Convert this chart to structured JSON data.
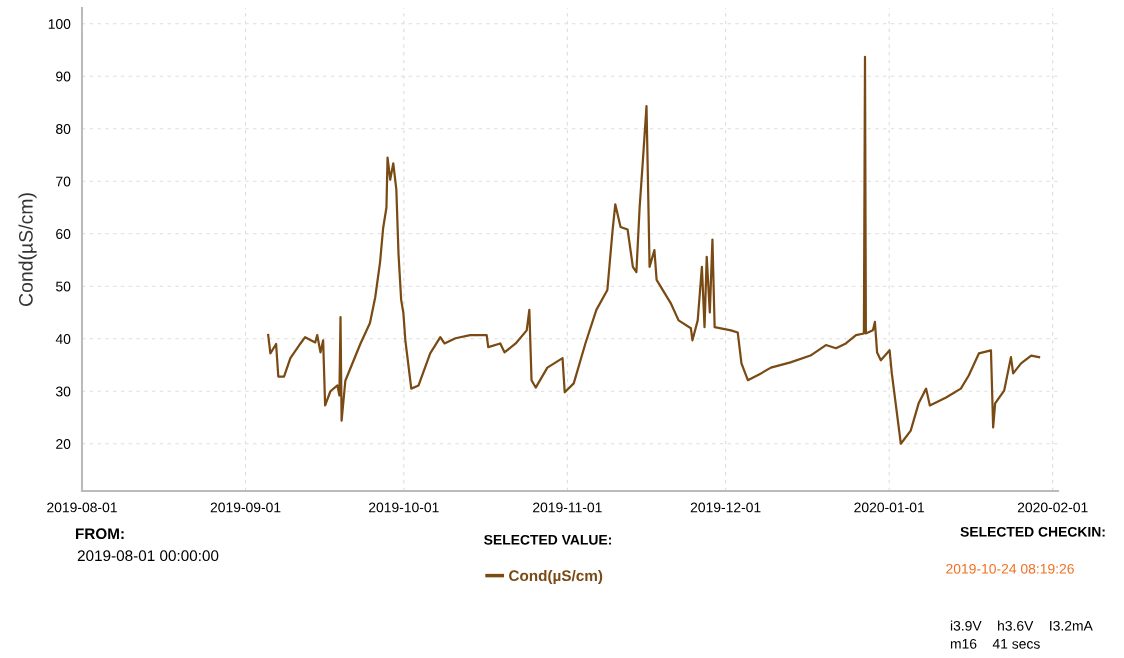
{
  "chart_data": {
    "type": "line",
    "ylabel": "Cond(µS/cm)",
    "xlim": [
      "2019-08-01",
      "2020-02-02"
    ],
    "ylim": [
      11,
      103
    ],
    "xticks": [
      "2019-08-01",
      "2019-09-01",
      "2019-10-01",
      "2019-11-01",
      "2019-12-01",
      "2020-01-01",
      "2020-02-01"
    ],
    "yticks": [
      20,
      30,
      40,
      50,
      60,
      70,
      80,
      90,
      100
    ],
    "grid": true,
    "legend": "bottom",
    "marker": "none",
    "line_style": "solid",
    "annotations": [
      "FROM:",
      "2019-08-01 00:00:00",
      "SELECTED VALUE:",
      "SELECTED CHECKIN:",
      "2019-10-24 08:19:26",
      "i3.9V    h3.6V    I3.2mA",
      "m16    41 secs"
    ],
    "series": [
      {
        "name": "Cond(µS/cm)",
        "color": "#7a4a14",
        "x": [
          "2019-09-05T07:00",
          "2019-09-05T17:00",
          "2019-09-06T19:00",
          "2019-09-07T05:00",
          "2019-09-08T07:00",
          "2019-09-09T12:00",
          "2019-09-11T10:00",
          "2019-09-12T07:00",
          "2019-09-14T05:00",
          "2019-09-14T14:00",
          "2019-09-15T05:00",
          "2019-09-15T17:00",
          "2019-09-16T02:00",
          "2019-09-17T02:00",
          "2019-09-18T10:00",
          "2019-09-18T19:00",
          "2019-09-19T00:00",
          "2019-09-19T05:00",
          "2019-09-19T22:00",
          "2019-09-22T19:00",
          "2019-09-24T14:00",
          "2019-09-25T14:00",
          "2019-09-26T12:00",
          "2019-09-27T02:00",
          "2019-09-27T17:00",
          "2019-09-27T22:00",
          "2019-09-28T10:00",
          "2019-09-29T00:00",
          "2019-09-29T14:00",
          "2019-09-30T00:00",
          "2019-09-30T12:00",
          "2019-09-30T22:00",
          "2019-10-01T07:00",
          "2019-10-02T10:00",
          "2019-10-03T19:00",
          "2019-10-06T00:00",
          "2019-10-07T22:00",
          "2019-10-08T17:00",
          "2019-10-10T19:00",
          "2019-10-13T14:00",
          "2019-10-16T17:00",
          "2019-10-17T00:00",
          "2019-10-19T07:00",
          "2019-10-20T02:00",
          "2019-10-22T05:00",
          "2019-10-24T07:00",
          "2019-10-24T19:00",
          "2019-10-25T05:00",
          "2019-10-26T00:00",
          "2019-10-28T05:00",
          "2019-10-31T02:00",
          "2019-10-31T12:00",
          "2019-11-02T05:00",
          "2019-11-04T10:00",
          "2019-11-06T12:00",
          "2019-11-08T14:00",
          "2019-11-09T14:00",
          "2019-11-10T02:00",
          "2019-11-11T02:00",
          "2019-11-12T10:00",
          "2019-11-13T10:00",
          "2019-11-14T02:00",
          "2019-11-14T17:00",
          "2019-11-15T07:00",
          "2019-11-16T00:00",
          "2019-11-16T05:00",
          "2019-11-16T14:00",
          "2019-11-17T12:00",
          "2019-11-17T22:00",
          "2019-11-20T14:00",
          "2019-11-22T02:00",
          "2019-11-24T10:00",
          "2019-11-24T17:00",
          "2019-11-25T17:00",
          "2019-11-26T12:00",
          "2019-11-27T00:00",
          "2019-11-27T10:00",
          "2019-11-28T00:00",
          "2019-11-28T12:00",
          "2019-11-28T22:00",
          "2019-12-02T00:00",
          "2019-12-03T07:00",
          "2019-12-04T00:00",
          "2019-12-05T05:00",
          "2019-12-07T17:00",
          "2019-12-09T14:00",
          "2019-12-13T07:00",
          "2019-12-17T02:00",
          "2019-12-20T00:00",
          "2019-12-21T22:00",
          "2019-12-23T19:00",
          "2019-12-25T17:00",
          "2019-12-27T05:00",
          "2019-12-27T10:00",
          "2019-12-27T14:00",
          "2019-12-28T22:00",
          "2019-12-29T07:00",
          "2019-12-29T17:00",
          "2019-12-30T10:00",
          "2020-01-01T02:00",
          "2020-01-01T12:00",
          "2020-01-03T05:00",
          "2020-01-05T02:00",
          "2020-01-06T14:00",
          "2020-01-08T00:00",
          "2020-01-08T17:00",
          "2020-01-11T19:00",
          "2020-01-14T14:00",
          "2020-01-16T02:00",
          "2020-01-18T00:00",
          "2020-01-20T07:00",
          "2020-01-20T17:00",
          "2020-01-21T02:00",
          "2020-01-22T19:00",
          "2020-01-24T02:00",
          "2020-01-24T12:00",
          "2020-01-26T00:00",
          "2020-01-27T22:00",
          "2020-01-29T10:00"
        ],
        "values": [
          40.7,
          37.2,
          39,
          32.8,
          32.8,
          36.3,
          39.1,
          40.3,
          39.3,
          40.7,
          37.4,
          39.7,
          27.3,
          30,
          31.1,
          29.2,
          44.1,
          24.4,
          32,
          39.1,
          43,
          47.9,
          54.6,
          61.1,
          65,
          74.5,
          70.3,
          73.4,
          68.4,
          56,
          47.4,
          44.9,
          39.7,
          30.5,
          31.1,
          37.2,
          40.3,
          39.1,
          40.1,
          40.7,
          40.7,
          38.4,
          39.1,
          37.4,
          39.1,
          41.6,
          45.5,
          32.1,
          30.7,
          34.5,
          36.3,
          29.8,
          31.5,
          39.1,
          45.5,
          49.3,
          60.8,
          65.6,
          61.3,
          60.8,
          53.7,
          52.7,
          65.2,
          73.6,
          84.3,
          73.6,
          53.7,
          56.9,
          51.2,
          46.8,
          43.5,
          42,
          39.7,
          43.5,
          53.7,
          42.2,
          55.6,
          45,
          58.9,
          42.2,
          41.6,
          41.2,
          35.3,
          32.1,
          33.4,
          34.5,
          35.5,
          36.8,
          38.8,
          38.2,
          39.1,
          40.7,
          41,
          93.7,
          41,
          41.6,
          43.2,
          37.4,
          35.9,
          37.8,
          33.4,
          20,
          22.5,
          27.7,
          30.5,
          27.3,
          28.8,
          30.5,
          33,
          37.2,
          37.8,
          23.1,
          27.7,
          30.1,
          36.5,
          33.4,
          35.3,
          36.8,
          36.5
        ]
      }
    ]
  }
}
